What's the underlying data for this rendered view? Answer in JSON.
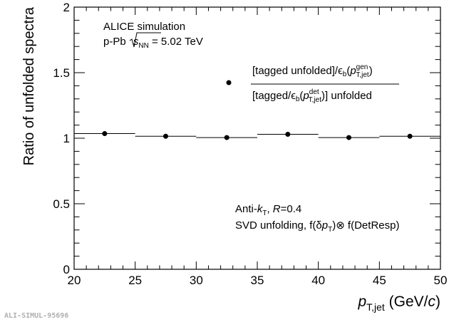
{
  "chart_data": {
    "type": "scatter",
    "ylabel": "Ratio of unfolded spectra",
    "xlabel_main": "p",
    "xlabel_sub": "T,jet",
    "xlabel_units_open": " (GeV/",
    "xlabel_units_c": "c",
    "xlabel_units_close": ")",
    "xlim": [
      20,
      50
    ],
    "ylim": [
      0,
      2
    ],
    "x_ticks": [
      20,
      25,
      30,
      35,
      40,
      45,
      50
    ],
    "x_tick_labels": [
      "20",
      "25",
      "30",
      "35",
      "40",
      "45",
      "50"
    ],
    "y_ticks": [
      0,
      0.5,
      1,
      1.5,
      2
    ],
    "y_tick_labels": [
      "0",
      "0.5",
      "1",
      "1.5",
      "2"
    ],
    "grid": false,
    "legend_position": "top-right",
    "series": [
      {
        "x": [
          22.5,
          27.5,
          32.5,
          37.5,
          42.5,
          47.5
        ],
        "x_low": [
          20,
          25,
          30,
          35,
          40,
          45
        ],
        "x_high": [
          25,
          30,
          35,
          40,
          45,
          50
        ],
        "y": [
          1.035,
          1.015,
          1.005,
          1.03,
          1.005,
          1.015
        ],
        "y_err": [
          0,
          0,
          0,
          0,
          0,
          0.012
        ]
      }
    ],
    "annotations": {
      "alice_line1": "ALICE simulation",
      "alice_line2_pre": "p-Pb ",
      "alice_line2_s": "s",
      "alice_line2_nn": "NN",
      "alice_line2_post": " = 5.02 TeV",
      "jet_line1_pre": "Anti-",
      "jet_line1_k": "k",
      "jet_line1_t": "T",
      "jet_line1_mid": ", ",
      "jet_line1_r": "R",
      "jet_line1_post": "=0.4",
      "jet_line2_pre": "SVD unfolding, f(δ",
      "jet_line2_p": "p",
      "jet_line2_t": "T",
      "jet_line2_post": ")⊗ f(DetResp)",
      "legend_num_pre": "[tagged unfolded]/",
      "legend_eps": "ϵ",
      "legend_b": "b",
      "legend_paren": "(",
      "legend_p": "p",
      "legend_gen": "gen",
      "legend_tjet": "T,jet",
      "legend_close": ")",
      "legend_den_pre": "[tagged/",
      "legend_det": "det",
      "legend_den_post": ")] unfolded",
      "watermark": "ALI-SIMUL-95696"
    }
  }
}
